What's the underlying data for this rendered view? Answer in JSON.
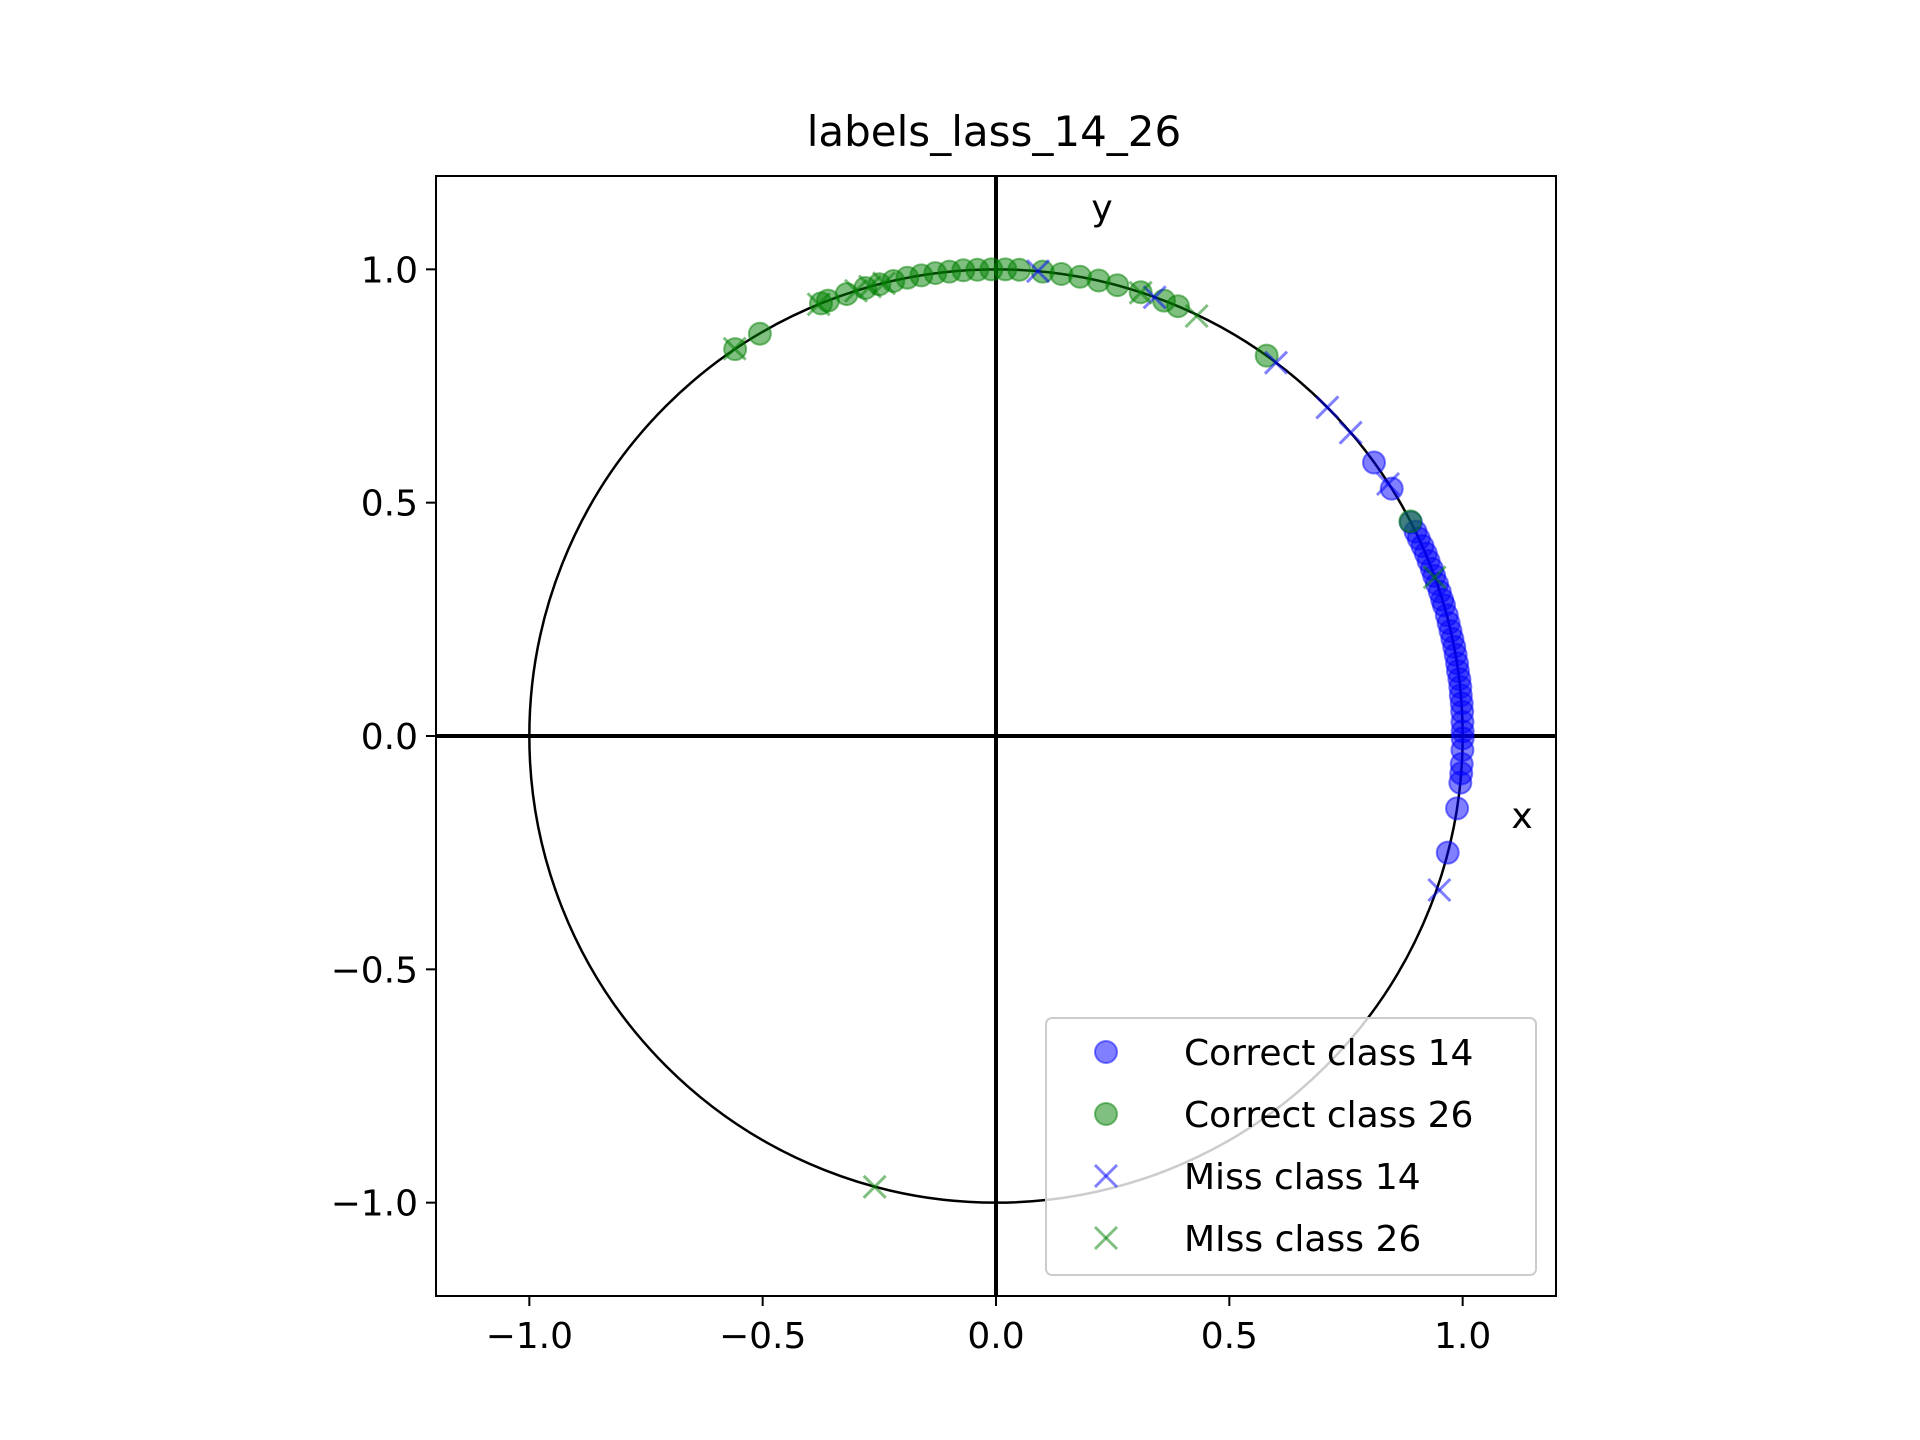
{
  "chart_data": {
    "type": "scatter",
    "title": "labels_lass_14_26",
    "xlim": [
      -1.2,
      1.2
    ],
    "ylim": [
      -1.2,
      1.2
    ],
    "xticks": [
      -1.0,
      -0.5,
      0.0,
      0.5,
      1.0
    ],
    "yticks": [
      -1.0,
      -0.5,
      0.0,
      0.5,
      1.0
    ],
    "xtick_labels": [
      "−1.0",
      "−0.5",
      "0.0",
      "0.5",
      "1.0"
    ],
    "ytick_labels": [
      "−1.0",
      "−0.5",
      "0.0",
      "0.5",
      "1.0"
    ],
    "axis_annotations": {
      "x": "x",
      "y": "y"
    },
    "grid": false,
    "unit_circle": true,
    "legend_placement": "lower-right",
    "series": [
      {
        "name": "Correct class 14",
        "marker": "circle",
        "color": "#0000ff",
        "points": [
          [
            0.81,
            0.586
          ],
          [
            0.848,
            0.53
          ],
          [
            0.889,
            0.458
          ],
          [
            0.899,
            0.438
          ],
          [
            0.906,
            0.423
          ],
          [
            0.914,
            0.407
          ],
          [
            0.921,
            0.391
          ],
          [
            0.927,
            0.375
          ],
          [
            0.934,
            0.358
          ],
          [
            0.939,
            0.343
          ],
          [
            0.945,
            0.326
          ],
          [
            0.951,
            0.309
          ],
          [
            0.956,
            0.292
          ],
          [
            0.96,
            0.28
          ],
          [
            0.966,
            0.259
          ],
          [
            0.97,
            0.242
          ],
          [
            0.974,
            0.225
          ],
          [
            0.978,
            0.208
          ],
          [
            0.982,
            0.191
          ],
          [
            0.985,
            0.174
          ],
          [
            0.988,
            0.156
          ],
          [
            0.99,
            0.139
          ],
          [
            0.993,
            0.122
          ],
          [
            0.995,
            0.105
          ],
          [
            0.996,
            0.087
          ],
          [
            0.998,
            0.07
          ],
          [
            0.999,
            0.052
          ],
          [
            0.9996,
            0.03
          ],
          [
            1.0,
            0.01
          ],
          [
            1.0,
            -0.005
          ],
          [
            0.9995,
            -0.03
          ],
          [
            0.998,
            -0.06
          ],
          [
            0.997,
            -0.08
          ],
          [
            0.995,
            -0.1
          ],
          [
            0.988,
            -0.155
          ],
          [
            0.968,
            -0.25
          ]
        ]
      },
      {
        "name": "Correct class 26",
        "marker": "circle",
        "color": "#008000",
        "points": [
          [
            -0.559,
            0.829
          ],
          [
            -0.506,
            0.862
          ],
          [
            -0.375,
            0.927
          ],
          [
            -0.36,
            0.933
          ],
          [
            -0.32,
            0.947
          ],
          [
            -0.28,
            0.96
          ],
          [
            -0.25,
            0.968
          ],
          [
            -0.22,
            0.975
          ],
          [
            -0.19,
            0.982
          ],
          [
            -0.16,
            0.987
          ],
          [
            -0.13,
            0.992
          ],
          [
            -0.1,
            0.995
          ],
          [
            -0.07,
            0.998
          ],
          [
            -0.04,
            0.999
          ],
          [
            -0.01,
            1.0
          ],
          [
            0.02,
            1.0
          ],
          [
            0.05,
            0.999
          ],
          [
            0.1,
            0.995
          ],
          [
            0.14,
            0.99
          ],
          [
            0.18,
            0.984
          ],
          [
            0.22,
            0.976
          ],
          [
            0.26,
            0.966
          ],
          [
            0.31,
            0.951
          ],
          [
            0.36,
            0.933
          ],
          [
            0.39,
            0.921
          ],
          [
            0.58,
            0.815
          ],
          [
            0.888,
            0.46
          ]
        ]
      },
      {
        "name": "Miss class 14",
        "marker": "x",
        "color": "#0000ff",
        "points": [
          [
            0.09,
            0.996
          ],
          [
            0.34,
            0.94
          ],
          [
            0.6,
            0.8
          ],
          [
            0.71,
            0.704
          ],
          [
            0.76,
            0.65
          ],
          [
            0.84,
            0.54
          ],
          [
            0.95,
            -0.33
          ]
        ]
      },
      {
        "name": "MIss class 26",
        "marker": "x",
        "color": "#008000",
        "points": [
          [
            -0.56,
            0.83
          ],
          [
            -0.38,
            0.925
          ],
          [
            -0.3,
            0.954
          ],
          [
            -0.27,
            0.963
          ],
          [
            -0.24,
            0.97
          ],
          [
            0.31,
            0.95
          ],
          [
            0.43,
            0.9
          ],
          [
            0.94,
            0.34
          ],
          [
            -0.26,
            -0.966
          ]
        ]
      }
    ]
  }
}
